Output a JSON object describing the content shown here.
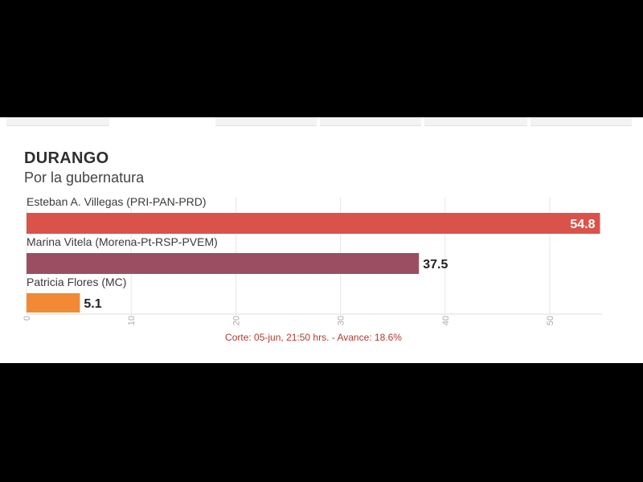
{
  "header": {
    "title": "DURANGO",
    "subtitle": "Por la gubernatura"
  },
  "footnote": "Corte: 05-jun, 21:50 hrs. - Avance: 18.6%",
  "chart_data": {
    "type": "bar",
    "orientation": "horizontal",
    "title": "DURANGO",
    "subtitle": "Por la gubernatura",
    "categories": [
      "Esteban A. Villegas (PRI-PAN-PRD)",
      "Marina Vitela (Morena-Pt-RSP-PVEM)",
      "Patricia Flores (MC)"
    ],
    "values": [
      54.8,
      37.5,
      5.1
    ],
    "value_labels": [
      "54.8",
      "37.5",
      "5.1"
    ],
    "colors": [
      "#d9534a",
      "#9b4e62",
      "#f28a35"
    ],
    "xlim": [
      0,
      55
    ],
    "xticks": [
      0,
      10,
      20,
      30,
      40,
      50
    ],
    "xtick_labels": [
      "0",
      "10",
      "20",
      "30",
      "40",
      "50"
    ],
    "grid": true
  }
}
